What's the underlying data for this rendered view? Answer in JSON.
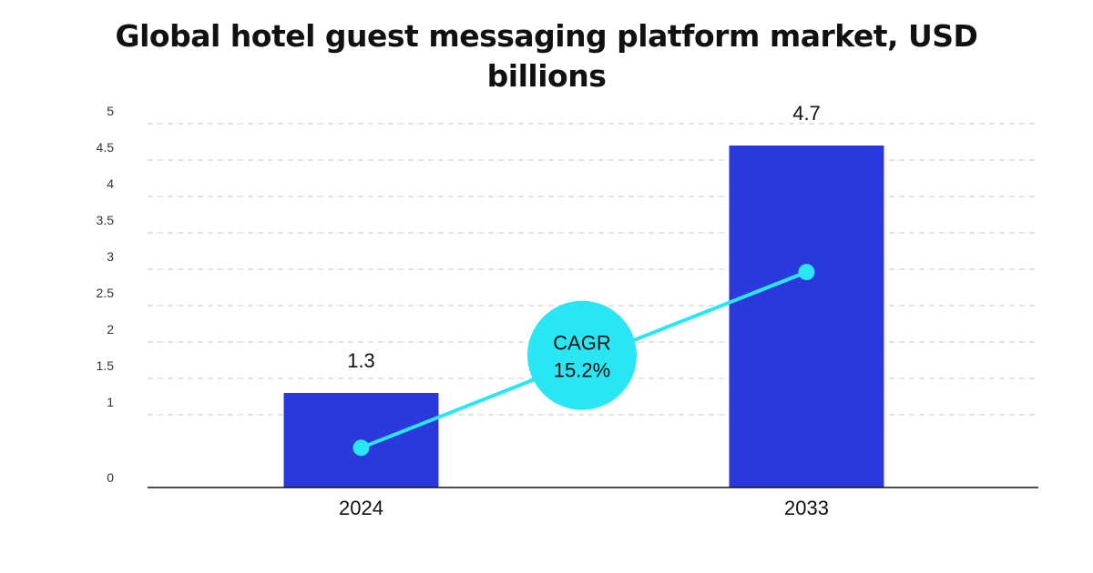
{
  "chart_data": {
    "type": "bar",
    "title": "Global hotel guest messaging platform market, USD billions",
    "categories": [
      "2024",
      "2033"
    ],
    "values": [
      1.3,
      4.7
    ],
    "data_labels": [
      "1.3",
      "4.7"
    ],
    "ylim": [
      0,
      5
    ],
    "yticks": [
      "0",
      "1",
      "1.5",
      "2",
      "2.5",
      "3",
      "3.5",
      "4",
      "4.5",
      "5"
    ],
    "grid": true,
    "bar_color": "#2a38dc",
    "annotation": {
      "line_1": "CAGR",
      "line_2": "15.2%",
      "color": "#29e6f5"
    }
  }
}
